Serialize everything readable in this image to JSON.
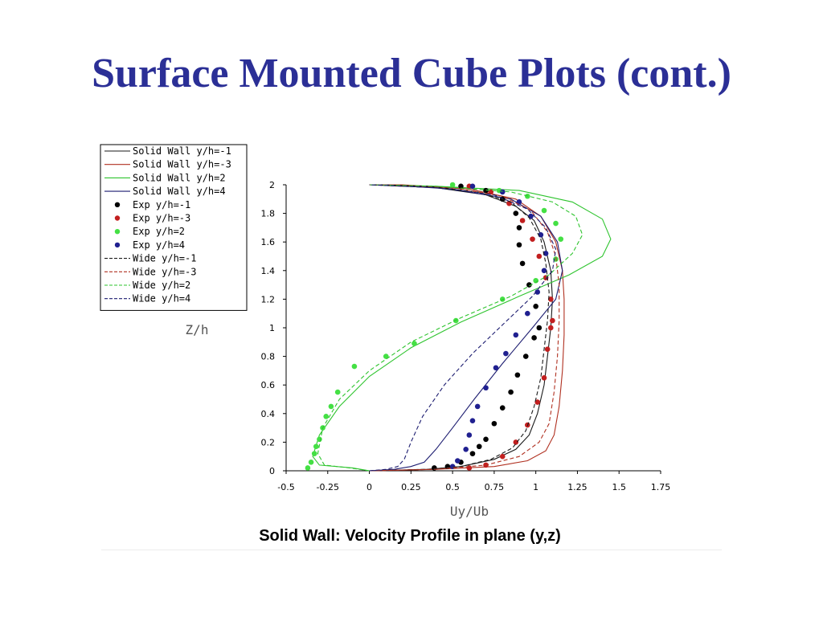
{
  "slide": {
    "title": "Surface Mounted Cube Plots (cont.)"
  },
  "chart_data": {
    "type": "line",
    "title": "Solid Wall: Velocity Profile in plane (y,z)",
    "xlabel": "Uy/Ub",
    "ylabel": "Z/h",
    "xlim": [
      -0.5,
      1.75
    ],
    "ylim": [
      0,
      2
    ],
    "x_ticks": [
      "-0.5",
      "-0.25",
      "0",
      "0.25",
      "0.5",
      "0.75",
      "1",
      "1.25",
      "1.5",
      "1.75"
    ],
    "y_ticks": [
      "0",
      "0.2",
      "0.4",
      "0.6",
      "0.8",
      "1",
      "1.2",
      "1.4",
      "1.6",
      "1.8",
      "2"
    ],
    "x_tick_values": [
      -0.5,
      -0.25,
      0,
      0.25,
      0.5,
      0.75,
      1,
      1.25,
      1.5,
      1.75
    ],
    "y_tick_values": [
      0,
      0.2,
      0.4,
      0.6,
      0.8,
      1,
      1.2,
      1.4,
      1.6,
      1.8,
      2
    ],
    "grid": false,
    "legend_position": "top-left",
    "series": [
      {
        "name": "Solid Wall y/h=-1",
        "style": "solid",
        "color": "#1a1a1a",
        "points": [
          [
            0.0,
            0.0
          ],
          [
            0.35,
            0.01
          ],
          [
            0.55,
            0.03
          ],
          [
            0.75,
            0.08
          ],
          [
            0.88,
            0.15
          ],
          [
            0.96,
            0.25
          ],
          [
            1.01,
            0.4
          ],
          [
            1.05,
            0.6
          ],
          [
            1.07,
            0.8
          ],
          [
            1.09,
            1.0
          ],
          [
            1.1,
            1.2
          ],
          [
            1.09,
            1.4
          ],
          [
            1.05,
            1.6
          ],
          [
            0.99,
            1.75
          ],
          [
            0.88,
            1.85
          ],
          [
            0.7,
            1.93
          ],
          [
            0.4,
            1.98
          ],
          [
            0.0,
            2.0
          ]
        ]
      },
      {
        "name": "Solid Wall y/h=-3",
        "style": "solid",
        "color": "#b03020",
        "points": [
          [
            0.0,
            0.0
          ],
          [
            0.4,
            0.01
          ],
          [
            0.75,
            0.03
          ],
          [
            0.95,
            0.07
          ],
          [
            1.06,
            0.14
          ],
          [
            1.11,
            0.25
          ],
          [
            1.14,
            0.45
          ],
          [
            1.16,
            0.7
          ],
          [
            1.17,
            0.95
          ],
          [
            1.17,
            1.2
          ],
          [
            1.16,
            1.4
          ],
          [
            1.12,
            1.6
          ],
          [
            1.03,
            1.78
          ],
          [
            0.88,
            1.9
          ],
          [
            0.6,
            1.97
          ],
          [
            0.2,
            2.0
          ],
          [
            0.0,
            2.0
          ]
        ]
      },
      {
        "name": "Solid Wall y/h=2",
        "style": "solid",
        "color": "#2ec42e",
        "points": [
          [
            0.0,
            0.0
          ],
          [
            -0.1,
            0.02
          ],
          [
            -0.3,
            0.04
          ],
          [
            -0.34,
            0.1
          ],
          [
            -0.3,
            0.25
          ],
          [
            -0.18,
            0.45
          ],
          [
            0.0,
            0.66
          ],
          [
            0.25,
            0.86
          ],
          [
            0.55,
            1.04
          ],
          [
            0.9,
            1.22
          ],
          [
            1.2,
            1.37
          ],
          [
            1.4,
            1.5
          ],
          [
            1.45,
            1.62
          ],
          [
            1.4,
            1.76
          ],
          [
            1.22,
            1.88
          ],
          [
            0.9,
            1.96
          ],
          [
            0.4,
            1.99
          ],
          [
            0.0,
            2.0
          ]
        ]
      },
      {
        "name": "Solid Wall y/h=4",
        "style": "solid",
        "color": "#1c1c70",
        "points": [
          [
            0.0,
            0.0
          ],
          [
            0.15,
            0.01
          ],
          [
            0.25,
            0.03
          ],
          [
            0.33,
            0.06
          ],
          [
            0.4,
            0.15
          ],
          [
            0.5,
            0.3
          ],
          [
            0.63,
            0.5
          ],
          [
            0.8,
            0.75
          ],
          [
            0.98,
            1.0
          ],
          [
            1.12,
            1.2
          ],
          [
            1.16,
            1.4
          ],
          [
            1.13,
            1.6
          ],
          [
            1.03,
            1.78
          ],
          [
            0.85,
            1.9
          ],
          [
            0.5,
            1.97
          ],
          [
            0.1,
            2.0
          ],
          [
            0.0,
            2.0
          ]
        ]
      },
      {
        "name": "Exp y/h=-1",
        "style": "dots",
        "color": "#000000",
        "points": [
          [
            0.39,
            0.02
          ],
          [
            0.47,
            0.03
          ],
          [
            0.55,
            0.06
          ],
          [
            0.62,
            0.12
          ],
          [
            0.66,
            0.17
          ],
          [
            0.7,
            0.22
          ],
          [
            0.75,
            0.33
          ],
          [
            0.8,
            0.44
          ],
          [
            0.85,
            0.55
          ],
          [
            0.89,
            0.67
          ],
          [
            0.94,
            0.8
          ],
          [
            0.99,
            0.93
          ],
          [
            1.02,
            1.0
          ],
          [
            1.0,
            1.15
          ],
          [
            0.96,
            1.3
          ],
          [
            0.92,
            1.45
          ],
          [
            0.9,
            1.58
          ],
          [
            0.9,
            1.7
          ],
          [
            0.88,
            1.8
          ],
          [
            0.8,
            1.9
          ],
          [
            0.7,
            1.96
          ],
          [
            0.55,
            1.99
          ]
        ]
      },
      {
        "name": "Exp y/h=-3",
        "style": "dots",
        "color": "#c21f1f",
        "points": [
          [
            0.6,
            0.02
          ],
          [
            0.7,
            0.04
          ],
          [
            0.8,
            0.1
          ],
          [
            0.88,
            0.2
          ],
          [
            0.95,
            0.32
          ],
          [
            1.01,
            0.48
          ],
          [
            1.05,
            0.65
          ],
          [
            1.07,
            0.85
          ],
          [
            1.09,
            1.0
          ],
          [
            1.1,
            1.05
          ],
          [
            1.09,
            1.2
          ],
          [
            1.06,
            1.35
          ],
          [
            1.02,
            1.5
          ],
          [
            0.98,
            1.62
          ],
          [
            0.92,
            1.75
          ],
          [
            0.84,
            1.87
          ],
          [
            0.73,
            1.95
          ],
          [
            0.6,
            1.99
          ]
        ]
      },
      {
        "name": "Exp y/h=2",
        "style": "dots",
        "color": "#44e044",
        "points": [
          [
            -0.37,
            0.02
          ],
          [
            -0.35,
            0.06
          ],
          [
            -0.33,
            0.12
          ],
          [
            -0.32,
            0.17
          ],
          [
            -0.3,
            0.22
          ],
          [
            -0.28,
            0.3
          ],
          [
            -0.26,
            0.38
          ],
          [
            -0.23,
            0.45
          ],
          [
            -0.19,
            0.55
          ],
          [
            -0.09,
            0.73
          ],
          [
            0.1,
            0.8
          ],
          [
            0.27,
            0.89
          ],
          [
            0.52,
            1.05
          ],
          [
            0.8,
            1.2
          ],
          [
            1.0,
            1.33
          ],
          [
            1.12,
            1.48
          ],
          [
            1.15,
            1.62
          ],
          [
            1.12,
            1.73
          ],
          [
            1.05,
            1.82
          ],
          [
            0.95,
            1.92
          ],
          [
            0.78,
            1.96
          ],
          [
            0.5,
            2.0
          ]
        ]
      },
      {
        "name": "Exp y/h=4",
        "style": "dots",
        "color": "#202090",
        "points": [
          [
            0.5,
            0.03
          ],
          [
            0.53,
            0.07
          ],
          [
            0.58,
            0.15
          ],
          [
            0.6,
            0.25
          ],
          [
            0.62,
            0.35
          ],
          [
            0.65,
            0.45
          ],
          [
            0.7,
            0.58
          ],
          [
            0.76,
            0.72
          ],
          [
            0.82,
            0.82
          ],
          [
            0.88,
            0.95
          ],
          [
            0.95,
            1.1
          ],
          [
            1.01,
            1.25
          ],
          [
            1.05,
            1.4
          ],
          [
            1.06,
            1.52
          ],
          [
            1.03,
            1.65
          ],
          [
            0.97,
            1.78
          ],
          [
            0.9,
            1.88
          ],
          [
            0.8,
            1.95
          ],
          [
            0.62,
            1.99
          ]
        ]
      },
      {
        "name": "Wide y/h=-1",
        "style": "dashed",
        "color": "#1a1a1a",
        "points": [
          [
            0.0,
            0.0
          ],
          [
            0.35,
            0.01
          ],
          [
            0.55,
            0.03
          ],
          [
            0.73,
            0.08
          ],
          [
            0.86,
            0.16
          ],
          [
            0.94,
            0.28
          ],
          [
            0.99,
            0.45
          ],
          [
            1.03,
            0.65
          ],
          [
            1.05,
            0.85
          ],
          [
            1.07,
            1.05
          ],
          [
            1.08,
            1.25
          ],
          [
            1.06,
            1.45
          ],
          [
            1.03,
            1.62
          ],
          [
            0.96,
            1.77
          ],
          [
            0.85,
            1.88
          ],
          [
            0.65,
            1.95
          ],
          [
            0.35,
            1.99
          ],
          [
            0.0,
            2.0
          ]
        ]
      },
      {
        "name": "Wide y/h=-3",
        "style": "dashed",
        "color": "#b03020",
        "points": [
          [
            0.0,
            0.0
          ],
          [
            0.4,
            0.01
          ],
          [
            0.7,
            0.04
          ],
          [
            0.9,
            0.1
          ],
          [
            1.02,
            0.2
          ],
          [
            1.08,
            0.33
          ],
          [
            1.11,
            0.55
          ],
          [
            1.13,
            0.8
          ],
          [
            1.14,
            1.05
          ],
          [
            1.14,
            1.3
          ],
          [
            1.12,
            1.5
          ],
          [
            1.07,
            1.67
          ],
          [
            0.97,
            1.82
          ],
          [
            0.8,
            1.92
          ],
          [
            0.5,
            1.98
          ],
          [
            0.1,
            2.0
          ],
          [
            0.0,
            2.0
          ]
        ]
      },
      {
        "name": "Wide y/h=2",
        "style": "dashed",
        "color": "#2ec42e",
        "points": [
          [
            0.0,
            0.0
          ],
          [
            -0.12,
            0.02
          ],
          [
            -0.27,
            0.04
          ],
          [
            -0.31,
            0.12
          ],
          [
            -0.28,
            0.3
          ],
          [
            -0.18,
            0.5
          ],
          [
            0.0,
            0.7
          ],
          [
            0.25,
            0.9
          ],
          [
            0.55,
            1.07
          ],
          [
            0.85,
            1.22
          ],
          [
            1.08,
            1.37
          ],
          [
            1.22,
            1.52
          ],
          [
            1.28,
            1.65
          ],
          [
            1.24,
            1.78
          ],
          [
            1.1,
            1.88
          ],
          [
            0.85,
            1.95
          ],
          [
            0.4,
            1.99
          ],
          [
            0.0,
            2.0
          ]
        ]
      },
      {
        "name": "Wide y/h=4",
        "style": "dashed",
        "color": "#1c1c70",
        "points": [
          [
            0.0,
            0.0
          ],
          [
            0.1,
            0.01
          ],
          [
            0.17,
            0.03
          ],
          [
            0.21,
            0.08
          ],
          [
            0.25,
            0.2
          ],
          [
            0.32,
            0.38
          ],
          [
            0.45,
            0.6
          ],
          [
            0.62,
            0.82
          ],
          [
            0.8,
            1.02
          ],
          [
            0.98,
            1.22
          ],
          [
            1.1,
            1.4
          ],
          [
            1.12,
            1.55
          ],
          [
            1.06,
            1.7
          ],
          [
            0.95,
            1.83
          ],
          [
            0.75,
            1.93
          ],
          [
            0.4,
            1.98
          ],
          [
            0.0,
            2.0
          ]
        ]
      }
    ]
  }
}
